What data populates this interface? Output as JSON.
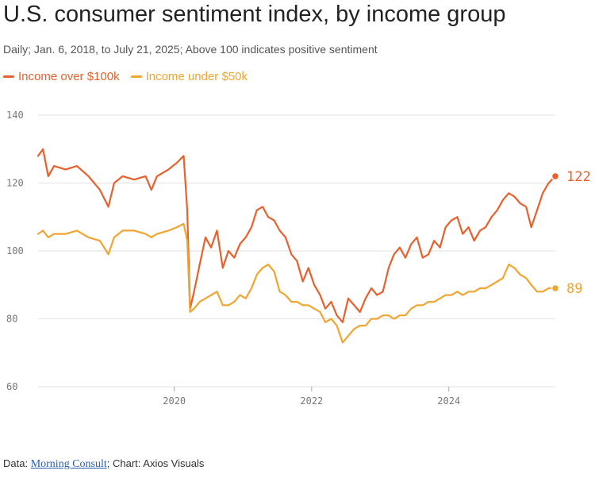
{
  "title": "U.S. consumer sentiment index, by income group",
  "subtitle": "Daily; Jan. 6, 2018, to July 21, 2025; Above 100 indicates positive sentiment",
  "legend": [
    {
      "label": "Income over $100k",
      "color": "#e8602c"
    },
    {
      "label": "Income under $50k",
      "color": "#f0a531"
    }
  ],
  "source": {
    "prefix": "Data: ",
    "link_text": "Morning Consult",
    "suffix": "; Chart: Axios Visuals"
  },
  "chart_data": {
    "type": "line",
    "title": "U.S. consumer sentiment index, by income group",
    "subtitle": "Daily; Jan. 6, 2018, to July 21, 2025; Above 100 indicates positive sentiment",
    "xlabel": "",
    "ylabel": "",
    "xlim": [
      "2018-01-06",
      "2025-07-21"
    ],
    "ylim": [
      60,
      140
    ],
    "y_ticks": [
      60,
      80,
      100,
      120,
      140
    ],
    "x_ticks": [
      2020,
      2022,
      2024
    ],
    "grid": "horizontal",
    "legend_position": "top-left",
    "series": [
      {
        "name": "Income over $100k",
        "color": "#e8602c",
        "end_label": "122",
        "x": [
          "2018-01-06",
          "2018-02-01",
          "2018-03-01",
          "2018-04-01",
          "2018-06-01",
          "2018-08-01",
          "2018-10-01",
          "2018-12-01",
          "2019-01-15",
          "2019-02-15",
          "2019-04-01",
          "2019-06-01",
          "2019-08-01",
          "2019-09-01",
          "2019-10-01",
          "2019-12-01",
          "2020-01-15",
          "2020-02-20",
          "2020-03-10",
          "2020-03-25",
          "2020-04-15",
          "2020-05-15",
          "2020-06-15",
          "2020-07-15",
          "2020-08-15",
          "2020-09-15",
          "2020-10-15",
          "2020-11-15",
          "2020-12-15",
          "2021-01-15",
          "2021-02-15",
          "2021-03-15",
          "2021-04-15",
          "2021-05-15",
          "2021-06-15",
          "2021-07-15",
          "2021-08-15",
          "2021-09-15",
          "2021-10-15",
          "2021-11-15",
          "2021-12-15",
          "2022-01-15",
          "2022-02-15",
          "2022-03-15",
          "2022-04-15",
          "2022-05-15",
          "2022-06-15",
          "2022-07-15",
          "2022-08-15",
          "2022-09-15",
          "2022-10-15",
          "2022-11-15",
          "2022-12-15",
          "2023-01-15",
          "2023-02-15",
          "2023-03-15",
          "2023-04-15",
          "2023-05-15",
          "2023-06-15",
          "2023-07-15",
          "2023-08-15",
          "2023-09-15",
          "2023-10-15",
          "2023-11-15",
          "2023-12-15",
          "2024-01-15",
          "2024-02-15",
          "2024-03-15",
          "2024-04-15",
          "2024-05-15",
          "2024-06-15",
          "2024-07-15",
          "2024-08-15",
          "2024-09-15",
          "2024-10-15",
          "2024-11-15",
          "2024-12-15",
          "2025-01-15",
          "2025-02-15",
          "2025-03-15",
          "2025-04-15",
          "2025-05-15",
          "2025-06-15",
          "2025-07-21"
        ],
        "values": [
          128,
          130,
          122,
          125,
          124,
          125,
          122,
          118,
          113,
          120,
          122,
          121,
          122,
          118,
          122,
          124,
          126,
          128,
          112,
          83,
          88,
          96,
          104,
          101,
          106,
          95,
          100,
          98,
          102,
          104,
          107,
          112,
          113,
          110,
          109,
          106,
          104,
          99,
          97,
          91,
          95,
          90,
          87,
          83,
          85,
          81,
          79,
          86,
          84,
          82,
          86,
          89,
          87,
          88,
          95,
          99,
          101,
          98,
          102,
          104,
          98,
          99,
          103,
          101,
          107,
          109,
          110,
          105,
          107,
          103,
          106,
          107,
          110,
          112,
          115,
          117,
          116,
          114,
          113,
          107,
          112,
          117,
          120,
          122
        ]
      },
      {
        "name": "Income under $50k",
        "color": "#f0a531",
        "end_label": "89",
        "x": [
          "2018-01-06",
          "2018-02-01",
          "2018-03-01",
          "2018-04-01",
          "2018-06-01",
          "2018-08-01",
          "2018-10-01",
          "2018-12-01",
          "2019-01-15",
          "2019-02-15",
          "2019-04-01",
          "2019-06-01",
          "2019-08-01",
          "2019-09-01",
          "2019-10-01",
          "2019-12-01",
          "2020-01-15",
          "2020-02-20",
          "2020-03-10",
          "2020-03-25",
          "2020-04-15",
          "2020-05-15",
          "2020-06-15",
          "2020-07-15",
          "2020-08-15",
          "2020-09-15",
          "2020-10-15",
          "2020-11-15",
          "2020-12-15",
          "2021-01-15",
          "2021-02-15",
          "2021-03-15",
          "2021-04-15",
          "2021-05-15",
          "2021-06-15",
          "2021-07-15",
          "2021-08-15",
          "2021-09-15",
          "2021-10-15",
          "2021-11-15",
          "2021-12-15",
          "2022-01-15",
          "2022-02-15",
          "2022-03-15",
          "2022-04-15",
          "2022-05-15",
          "2022-06-15",
          "2022-07-15",
          "2022-08-15",
          "2022-09-15",
          "2022-10-15",
          "2022-11-15",
          "2022-12-15",
          "2023-01-15",
          "2023-02-15",
          "2023-03-15",
          "2023-04-15",
          "2023-05-15",
          "2023-06-15",
          "2023-07-15",
          "2023-08-15",
          "2023-09-15",
          "2023-10-15",
          "2023-11-15",
          "2023-12-15",
          "2024-01-15",
          "2024-02-15",
          "2024-03-15",
          "2024-04-15",
          "2024-05-15",
          "2024-06-15",
          "2024-07-15",
          "2024-08-15",
          "2024-09-15",
          "2024-10-15",
          "2024-11-15",
          "2024-12-15",
          "2025-01-15",
          "2025-02-15",
          "2025-03-15",
          "2025-04-15",
          "2025-05-15",
          "2025-06-15",
          "2025-07-21"
        ],
        "values": [
          105,
          106,
          104,
          105,
          105,
          106,
          104,
          103,
          99,
          104,
          106,
          106,
          105,
          104,
          105,
          106,
          107,
          108,
          103,
          82,
          83,
          85,
          86,
          87,
          88,
          84,
          84,
          85,
          87,
          86,
          89,
          93,
          95,
          96,
          94,
          88,
          87,
          85,
          85,
          84,
          84,
          83,
          82,
          79,
          80,
          78,
          73,
          75,
          77,
          78,
          78,
          80,
          80,
          81,
          81,
          80,
          81,
          81,
          83,
          84,
          84,
          85,
          85,
          86,
          87,
          87,
          88,
          87,
          88,
          88,
          89,
          89,
          90,
          91,
          92,
          96,
          95,
          93,
          92,
          90,
          88,
          88,
          89,
          89
        ]
      }
    ]
  }
}
